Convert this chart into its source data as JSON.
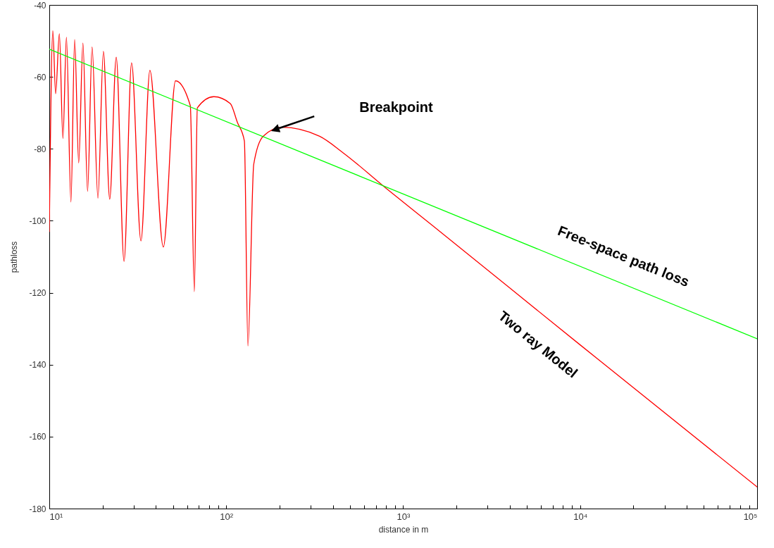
{
  "chart_data": {
    "type": "line",
    "xlabel": "distance in m",
    "ylabel": "pathloss",
    "log": "x",
    "grid": false,
    "marker": "none",
    "line_style": "solid",
    "xlim": [
      10,
      100000
    ],
    "ylim": [
      -180,
      -40
    ],
    "xticks": [
      {
        "value": 10,
        "label": "10¹"
      },
      {
        "value": 20,
        "label": null
      },
      {
        "value": 30,
        "label": null
      },
      {
        "value": 40,
        "label": null
      },
      {
        "value": 50,
        "label": null
      },
      {
        "value": 60,
        "label": null
      },
      {
        "value": 70,
        "label": null
      },
      {
        "value": 80,
        "label": null
      },
      {
        "value": 90,
        "label": null
      },
      {
        "value": 100,
        "label": "10²"
      },
      {
        "value": 200,
        "label": null
      },
      {
        "value": 300,
        "label": null
      },
      {
        "value": 400,
        "label": null
      },
      {
        "value": 500,
        "label": null
      },
      {
        "value": 600,
        "label": null
      },
      {
        "value": 700,
        "label": null
      },
      {
        "value": 800,
        "label": null
      },
      {
        "value": 900,
        "label": null
      },
      {
        "value": 1000,
        "label": "10³"
      },
      {
        "value": 2000,
        "label": null
      },
      {
        "value": 3000,
        "label": null
      },
      {
        "value": 4000,
        "label": null
      },
      {
        "value": 5000,
        "label": null
      },
      {
        "value": 6000,
        "label": null
      },
      {
        "value": 7000,
        "label": null
      },
      {
        "value": 8000,
        "label": null
      },
      {
        "value": 9000,
        "label": null
      },
      {
        "value": 10000,
        "label": "10⁴"
      },
      {
        "value": 20000,
        "label": null
      },
      {
        "value": 30000,
        "label": null
      },
      {
        "value": 40000,
        "label": null
      },
      {
        "value": 50000,
        "label": null
      },
      {
        "value": 60000,
        "label": null
      },
      {
        "value": 70000,
        "label": null
      },
      {
        "value": 80000,
        "label": null
      },
      {
        "value": 90000,
        "label": null
      },
      {
        "value": 100000,
        "label": "10⁵"
      }
    ],
    "yticks": [
      -180,
      -160,
      -140,
      -120,
      -100,
      -80,
      -60,
      -40
    ],
    "series": [
      {
        "name": "Two ray Model",
        "color": "#ff0000",
        "x": [
          10,
          10.47,
          10.86,
          11.4,
          11.94,
          12.5,
          13.25,
          13.91,
          14.66,
          15.49,
          16.46,
          17.45,
          18.83,
          20.21,
          21.95,
          23.9,
          26.45,
          29.17,
          32.96,
          37.03,
          44.09,
          51.67,
          62.64,
          66,
          68.66,
          85.04,
          105.4,
          115.5,
          126.6,
          132.6,
          143,
          161.6,
          206.4,
          336.6,
          457.5,
          793,
          1461,
          10000,
          100000
        ],
        "values": [
          -103,
          -47.2,
          -64.7,
          -48,
          -77.1,
          -49,
          -94.8,
          -49.6,
          -83.9,
          -50.6,
          -91.8,
          -51.7,
          -93.7,
          -52.9,
          -94,
          -54.5,
          -111.3,
          -56.1,
          -105.6,
          -58.2,
          -107.3,
          -61.1,
          -68,
          -119.7,
          -68.6,
          -65.5,
          -67.4,
          -72.6,
          -77.8,
          -134.8,
          -84.3,
          -76.5,
          -74,
          -76.5,
          -81.1,
          -90.8,
          -101.3,
          -134.5,
          -174
        ]
      },
      {
        "name": "Free-space path loss",
        "color": "#00ff00",
        "x": [
          10,
          100000
        ],
        "values": [
          -52.3,
          -132.8
        ]
      }
    ],
    "annotations": [
      "Breakpoint"
    ]
  }
}
